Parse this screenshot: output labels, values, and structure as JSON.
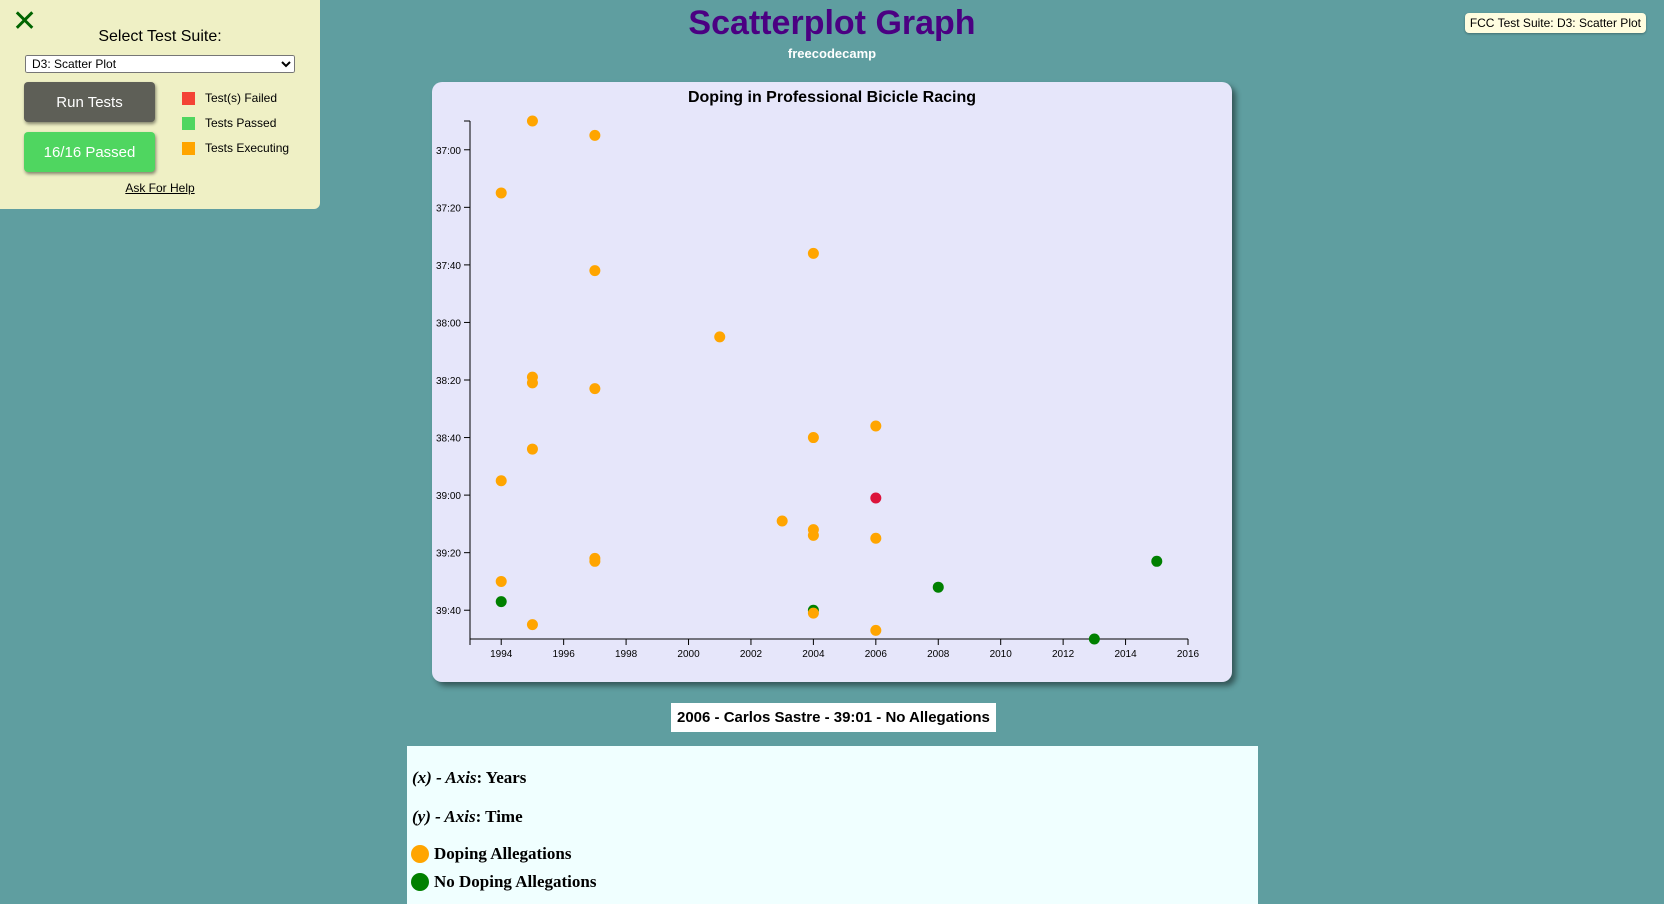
{
  "fcc": {
    "close_glyph": "✕",
    "select_label": "Select Test Suite:",
    "selected_suite": "D3: Scatter Plot",
    "run_button": "Run Tests",
    "passed_button": "16/16 Passed",
    "legend": [
      {
        "label": "Test(s) Failed",
        "color": "#f44336"
      },
      {
        "label": "Tests Passed",
        "color": "#4fd660"
      },
      {
        "label": "Tests Executing",
        "color": "#ffa500"
      }
    ],
    "help_link": "Ask For Help",
    "badge": "FCC Test Suite: D3: Scatter Plot"
  },
  "header": {
    "title": "Scatterplot Graph",
    "subtitle": "freecodecamp"
  },
  "chart_data": {
    "type": "scatter",
    "title": "Doping in Professional Bicicle Racing",
    "xlabel": "",
    "ylabel": "",
    "x_ticks": [
      "1994",
      "1996",
      "1998",
      "2000",
      "2002",
      "2004",
      "2006",
      "2008",
      "2010",
      "2012",
      "2014",
      "2016"
    ],
    "y_ticks": [
      "37:00",
      "37:20",
      "37:40",
      "38:00",
      "38:20",
      "38:40",
      "39:00",
      "39:20",
      "39:40"
    ],
    "xlim": [
      1993,
      2016
    ],
    "ylim_seconds": [
      2210,
      2390
    ],
    "grid": false,
    "colors": {
      "doping": "#ffa500",
      "clean": "#008000",
      "highlight": "#dc143c"
    },
    "points": [
      {
        "year": 1995,
        "time": "36:50",
        "doping": true
      },
      {
        "year": 1997,
        "time": "36:55",
        "doping": true
      },
      {
        "year": 1994,
        "time": "37:15",
        "doping": true
      },
      {
        "year": 2004,
        "time": "37:36",
        "doping": true
      },
      {
        "year": 1997,
        "time": "37:42",
        "doping": true
      },
      {
        "year": 2001,
        "time": "38:05",
        "doping": true
      },
      {
        "year": 1995,
        "time": "38:19",
        "doping": true
      },
      {
        "year": 1995,
        "time": "38:21",
        "doping": true
      },
      {
        "year": 1997,
        "time": "38:23",
        "doping": true
      },
      {
        "year": 2006,
        "time": "38:36",
        "doping": true
      },
      {
        "year": 2004,
        "time": "38:40",
        "doping": true
      },
      {
        "year": 1995,
        "time": "38:44",
        "doping": true
      },
      {
        "year": 1994,
        "time": "38:55",
        "doping": true
      },
      {
        "year": 2006,
        "time": "39:01",
        "doping": false,
        "highlight": true
      },
      {
        "year": 2003,
        "time": "39:09",
        "doping": true
      },
      {
        "year": 2004,
        "time": "39:12",
        "doping": true
      },
      {
        "year": 2004,
        "time": "39:14",
        "doping": true
      },
      {
        "year": 2006,
        "time": "39:15",
        "doping": true
      },
      {
        "year": 1997,
        "time": "39:22",
        "doping": true
      },
      {
        "year": 1997,
        "time": "39:23",
        "doping": true
      },
      {
        "year": 2015,
        "time": "39:23",
        "doping": false
      },
      {
        "year": 1994,
        "time": "39:30",
        "doping": true
      },
      {
        "year": 2008,
        "time": "39:32",
        "doping": false
      },
      {
        "year": 1994,
        "time": "39:37",
        "doping": false
      },
      {
        "year": 2004,
        "time": "39:40",
        "doping": false
      },
      {
        "year": 2004,
        "time": "39:41",
        "doping": true
      },
      {
        "year": 1995,
        "time": "39:45",
        "doping": true
      },
      {
        "year": 2006,
        "time": "39:47",
        "doping": true
      },
      {
        "year": 2013,
        "time": "39:50",
        "doping": false
      }
    ]
  },
  "tooltip": "2006 - Carlos Sastre - 39:01 - No Allegations",
  "info": {
    "x_axis_prefix": "(x) - Axis",
    "x_axis_value": ": Years",
    "y_axis_prefix": "(y) - Axis",
    "y_axis_value": ": Time",
    "legend_doping": "Doping Allegations",
    "legend_clean": "No Doping Allegations",
    "doping_color": "#ffa500",
    "clean_color": "#008000"
  }
}
